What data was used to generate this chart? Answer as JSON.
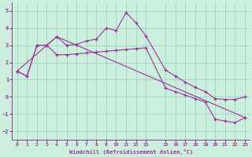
{
  "xlabel": "Windchill (Refroidissement éolien,°C)",
  "bg_color": "#cceedd",
  "line_color": "#993399",
  "xlim": [
    -0.5,
    23.5
  ],
  "ylim": [
    -2.5,
    5.5
  ],
  "xticks": [
    0,
    1,
    2,
    3,
    4,
    5,
    6,
    7,
    8,
    9,
    10,
    11,
    12,
    13,
    15,
    16,
    17,
    18,
    19,
    20,
    21,
    22,
    23
  ],
  "yticks": [
    -2,
    -1,
    0,
    1,
    2,
    3,
    4,
    5
  ],
  "curve1_x": [
    0,
    1,
    2,
    3,
    4,
    5,
    6,
    7,
    8,
    9,
    10,
    11,
    12,
    13,
    15,
    16,
    17,
    18,
    19,
    20,
    21,
    22,
    23
  ],
  "curve1_y": [
    1.5,
    1.2,
    3.0,
    3.0,
    3.5,
    3.0,
    3.05,
    3.25,
    3.35,
    4.0,
    3.85,
    4.9,
    4.3,
    3.55,
    1.55,
    1.2,
    0.85,
    0.55,
    0.3,
    -0.1,
    -0.15,
    -0.15,
    0.0
  ],
  "curve2_x": [
    0,
    1,
    2,
    3,
    4,
    5,
    6,
    7,
    8,
    9,
    10,
    11,
    12,
    13,
    15,
    16,
    17,
    18,
    19,
    20,
    21,
    22,
    23
  ],
  "curve2_y": [
    1.5,
    1.2,
    3.0,
    3.0,
    2.45,
    2.45,
    2.5,
    2.55,
    2.6,
    2.65,
    2.7,
    2.75,
    2.8,
    2.85,
    0.5,
    0.3,
    0.1,
    -0.1,
    -0.3,
    -1.3,
    -1.4,
    -1.5,
    -1.2
  ],
  "curve3_x": [
    0,
    4,
    23
  ],
  "curve3_y": [
    1.5,
    3.5,
    -1.2
  ],
  "grid_color": "#99ccbb",
  "font_color": "#993399",
  "font_family": "monospace"
}
